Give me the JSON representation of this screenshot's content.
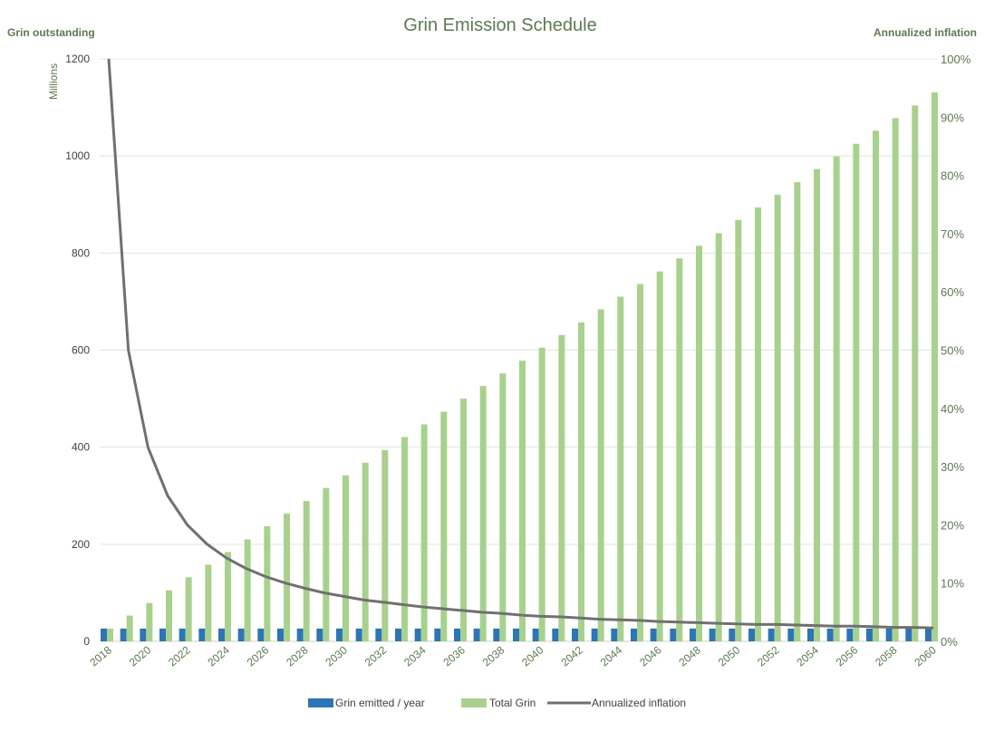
{
  "chart_data": {
    "type": "bar",
    "title": "Grin Emission Schedule",
    "left_axis_label": "Grin outstanding",
    "left_axis_unit": "Millions",
    "right_axis_label": "Annualized inflation",
    "ylim": [
      0,
      1200
    ],
    "y_ticks": [
      "0",
      "200",
      "400",
      "600",
      "800",
      "1000",
      "1200"
    ],
    "y2lim": [
      0,
      100
    ],
    "y2_ticks": [
      "0%",
      "10%",
      "20%",
      "30%",
      "40%",
      "50%",
      "60%",
      "70%",
      "80%",
      "90%",
      "100%"
    ],
    "x_tick_labels": [
      "2018",
      "2020",
      "2022",
      "2024",
      "2026",
      "2028",
      "2030",
      "2032",
      "2034",
      "2036",
      "2038",
      "2040",
      "2042",
      "2044",
      "2046",
      "2048",
      "2050",
      "2052",
      "2054",
      "2056",
      "2058",
      "2060"
    ],
    "categories": [
      "2018",
      "2019",
      "2020",
      "2021",
      "2022",
      "2023",
      "2024",
      "2025",
      "2026",
      "2027",
      "2028",
      "2029",
      "2030",
      "2031",
      "2032",
      "2033",
      "2034",
      "2035",
      "2036",
      "2037",
      "2038",
      "2039",
      "2040",
      "2041",
      "2042",
      "2043",
      "2044",
      "2045",
      "2046",
      "2047",
      "2048",
      "2049",
      "2050",
      "2051",
      "2052",
      "2053",
      "2054",
      "2055",
      "2056",
      "2057",
      "2058",
      "2059",
      "2060"
    ],
    "legend_position": "bottom",
    "grid": true,
    "series": [
      {
        "name": "Grin emitted / year",
        "kind": "bar",
        "axis": "left",
        "color": "#2e75b6",
        "values": [
          26.3,
          26.3,
          26.3,
          26.3,
          26.3,
          26.3,
          26.3,
          26.3,
          26.3,
          26.3,
          26.3,
          26.3,
          26.3,
          26.3,
          26.3,
          26.3,
          26.3,
          26.3,
          26.3,
          26.3,
          26.3,
          26.3,
          26.3,
          26.3,
          26.3,
          26.3,
          26.3,
          26.3,
          26.3,
          26.3,
          26.3,
          26.3,
          26.3,
          26.3,
          26.3,
          26.3,
          26.3,
          26.3,
          26.3,
          26.3,
          26.3,
          26.3,
          26.3
        ]
      },
      {
        "name": "Total Grin",
        "kind": "bar",
        "axis": "left",
        "color": "#a9d18e",
        "values": [
          26,
          53,
          79,
          105,
          132,
          158,
          184,
          210,
          237,
          263,
          289,
          316,
          342,
          368,
          394,
          421,
          447,
          473,
          500,
          526,
          552,
          578,
          605,
          631,
          657,
          684,
          710,
          736,
          762,
          789,
          815,
          841,
          868,
          894,
          920,
          946,
          973,
          999,
          1025,
          1052,
          1078,
          1104,
          1131
        ]
      },
      {
        "name": "Annualized inflation",
        "kind": "line",
        "axis": "right",
        "color": "#707070",
        "values": [
          100,
          50,
          33.3,
          25,
          20,
          16.7,
          14.3,
          12.5,
          11.1,
          10,
          9.1,
          8.3,
          7.7,
          7.1,
          6.7,
          6.3,
          5.9,
          5.6,
          5.3,
          5,
          4.8,
          4.5,
          4.3,
          4.2,
          4,
          3.8,
          3.7,
          3.6,
          3.4,
          3.3,
          3.2,
          3.1,
          3,
          2.9,
          2.9,
          2.8,
          2.7,
          2.6,
          2.6,
          2.5,
          2.4,
          2.4,
          2.3
        ]
      }
    ]
  }
}
